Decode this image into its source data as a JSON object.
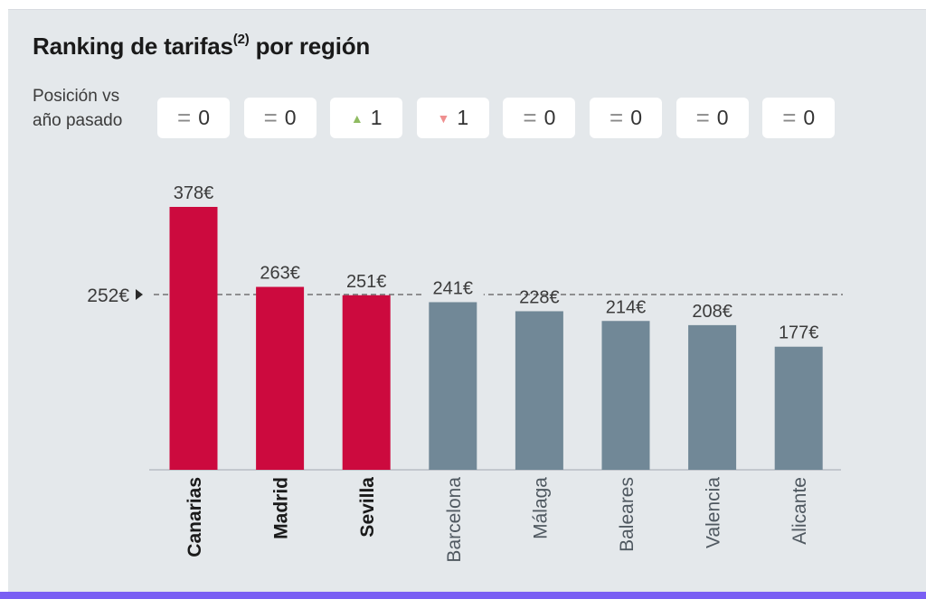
{
  "colors": {
    "highlight": "#cc0a3e",
    "normal": "#718897",
    "background": "#e4e8eb",
    "accent_bar": "#7a5ff3"
  },
  "position_label": "Posición vs año pasado",
  "chart_data": {
    "type": "bar",
    "title": "Ranking de tarifas",
    "title_sup": "(2)",
    "title_suffix": "por región",
    "categories": [
      "Canarias",
      "Madrid",
      "Sevilla",
      "Barcelona",
      "Málaga",
      "Baleares",
      "Valencia",
      "Alicante"
    ],
    "values": [
      378,
      263,
      251,
      241,
      228,
      214,
      208,
      177
    ],
    "value_labels": [
      "378€",
      "263€",
      "251€",
      "241€",
      "228€",
      "214€",
      "208€",
      "177€"
    ],
    "highlighted": [
      true,
      true,
      true,
      false,
      false,
      false,
      false,
      false
    ],
    "average": 252,
    "average_label": "252€",
    "ylim": [
      0,
      378
    ],
    "position_changes": [
      {
        "symbol": "=",
        "direction": "same",
        "value": "0"
      },
      {
        "symbol": "=",
        "direction": "same",
        "value": "0"
      },
      {
        "symbol": "▲",
        "direction": "up",
        "value": "1"
      },
      {
        "symbol": "▼",
        "direction": "down",
        "value": "1"
      },
      {
        "symbol": "=",
        "direction": "same",
        "value": "0"
      },
      {
        "symbol": "=",
        "direction": "same",
        "value": "0"
      },
      {
        "symbol": "=",
        "direction": "same",
        "value": "0"
      },
      {
        "symbol": "=",
        "direction": "same",
        "value": "0"
      }
    ]
  }
}
